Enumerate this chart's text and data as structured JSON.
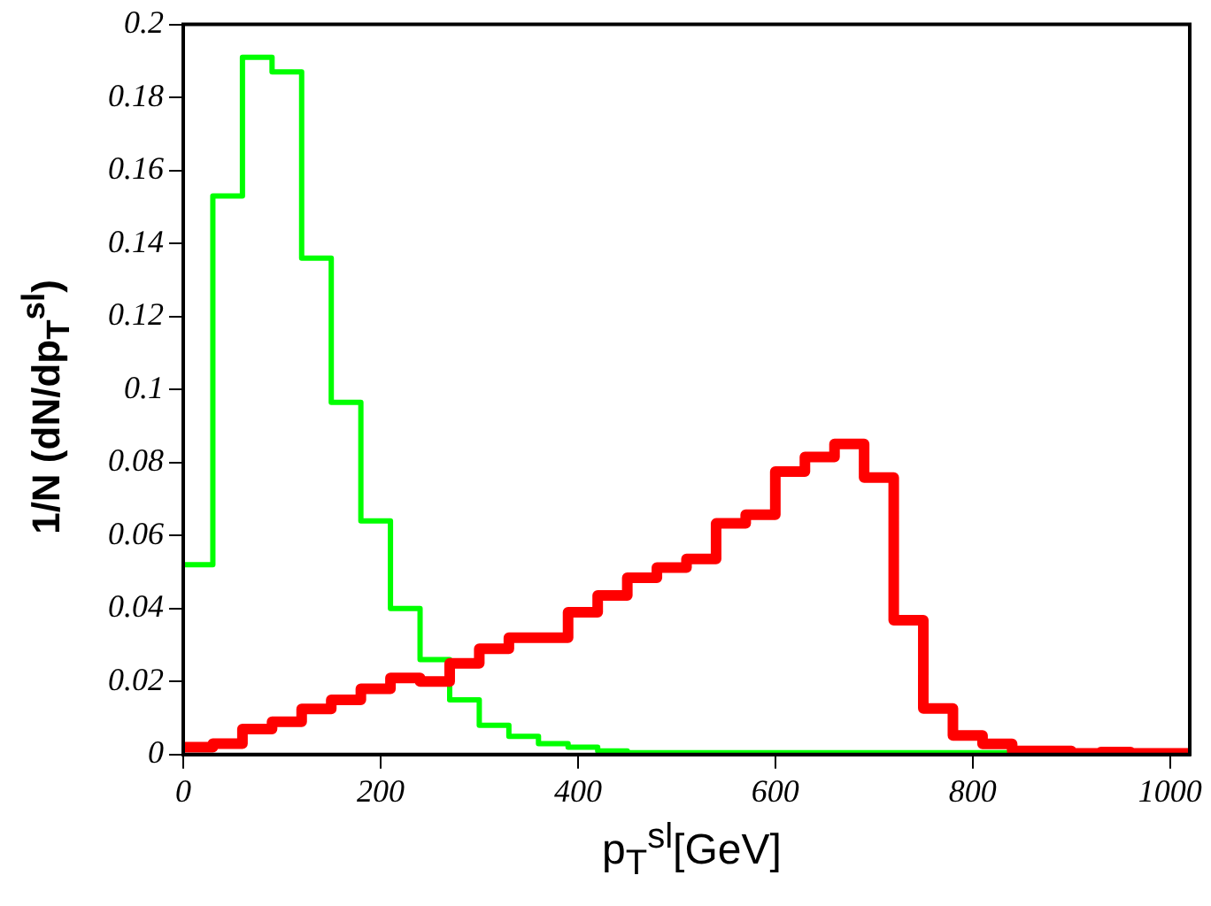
{
  "chart_data": {
    "type": "histogram",
    "xlabel": "p$_{T}$$^{sl}$[GeV]",
    "ylabel": "1/N (dN/dp$_{T}$$^{sl}$)",
    "bins": [
      0,
      30,
      60,
      90,
      120,
      150,
      180,
      210,
      240,
      270,
      300,
      330,
      360,
      390,
      420,
      450,
      480,
      510,
      540,
      570,
      600,
      630,
      660,
      690,
      720,
      750,
      780,
      810,
      840,
      870,
      900,
      930,
      960,
      990,
      1020
    ],
    "series": [
      {
        "color": "#00ff00",
        "values": [
          0.052,
          0.153,
          0.191,
          0.187,
          0.136,
          0.0965,
          0.064,
          0.04,
          0.026,
          0.015,
          0.008,
          0.005,
          0.003,
          0.002,
          0.001,
          0.0005,
          0.0005,
          0.0005,
          0.0005,
          0.0005,
          0.0005,
          0.0005,
          0.0005,
          0.0005,
          0.0005,
          0.0005,
          0.0005,
          0.0005,
          0,
          0,
          0,
          0,
          0,
          0
        ]
      },
      {
        "color": "#ff0000",
        "values": [
          0.002,
          0.003,
          0.007,
          0.009,
          0.0125,
          0.015,
          0.018,
          0.021,
          0.02,
          0.025,
          0.029,
          0.032,
          0.032,
          0.039,
          0.0436,
          0.0484,
          0.0512,
          0.0536,
          0.0633,
          0.0657,
          0.0775,
          0.0815,
          0.0851,
          0.0759,
          0.0368,
          0.0126,
          0.0052,
          0.0029,
          0.001,
          0.001,
          0.0003,
          0.0007,
          0.0003,
          0.0003
        ]
      }
    ],
    "xlim": [
      0,
      1020
    ],
    "xticks": [
      0,
      200,
      400,
      600,
      800,
      1000
    ],
    "ylim": [
      0,
      0.2
    ],
    "yticks": [
      0,
      0.02,
      0.04,
      0.06,
      0.08,
      0.1,
      0.12,
      0.14,
      0.16,
      0.18,
      0.2
    ],
    "grid": false,
    "legend": false
  }
}
